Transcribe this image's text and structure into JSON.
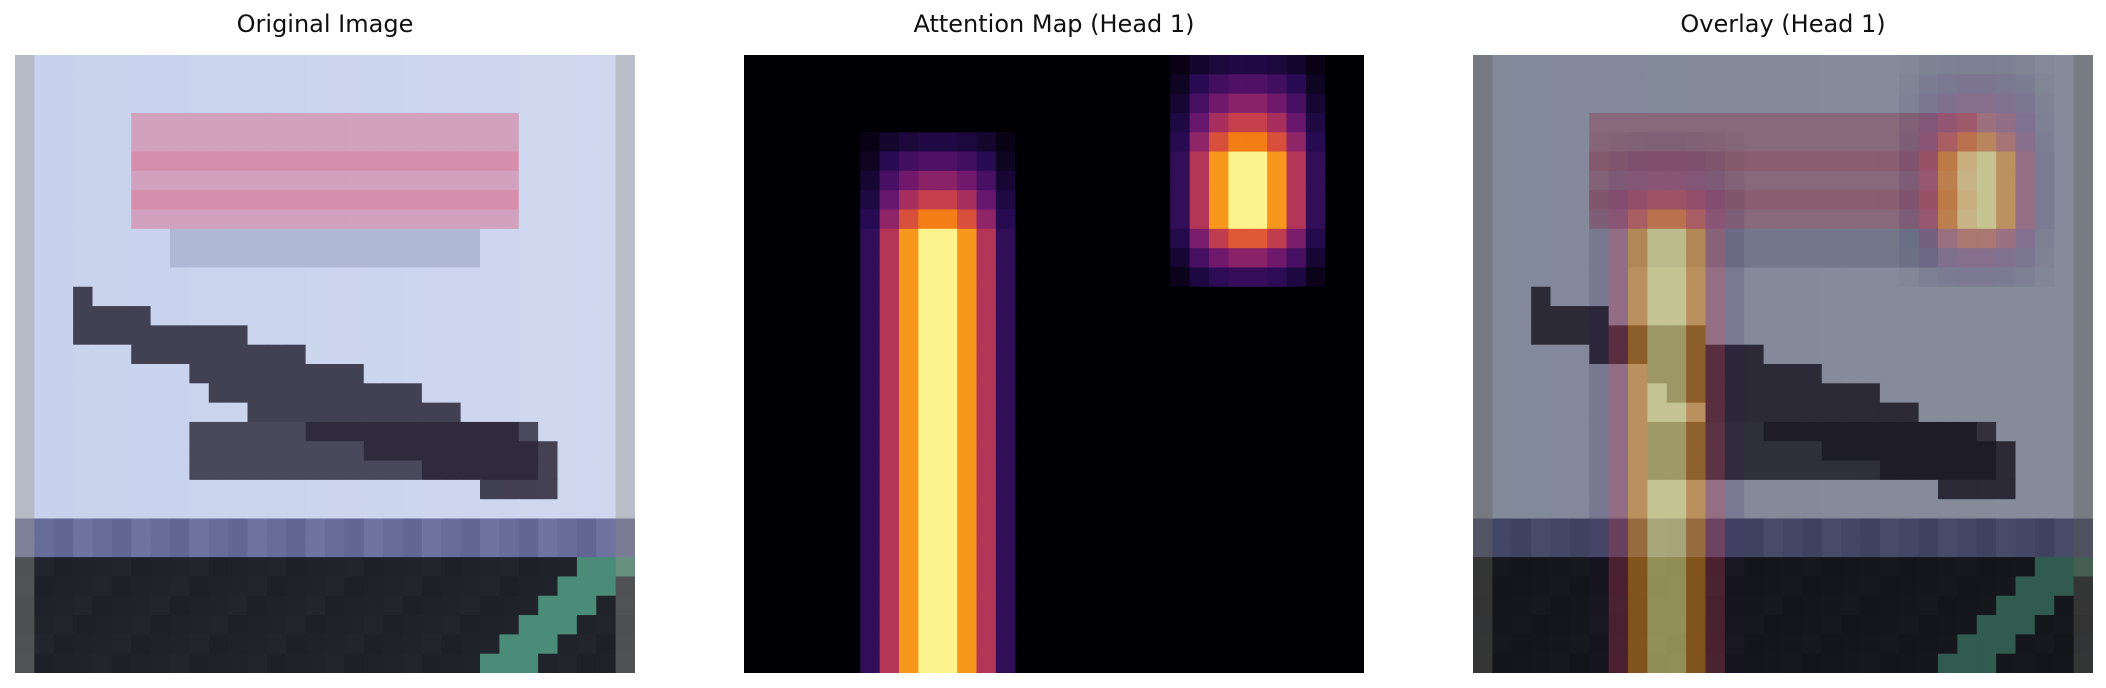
{
  "panels": [
    {
      "title": "Original Image"
    },
    {
      "title": "Attention Map (Head 1)"
    },
    {
      "title": "Overlay (Head 1)"
    }
  ],
  "grid": {
    "rows": 32,
    "cols": 32
  },
  "colors": {
    "sky": "#c8d2ec",
    "banner": "#d97896",
    "plane": "#2a2638",
    "ground": "#1e2028",
    "stripe": "#4a8c78"
  },
  "attention": {
    "colormap": "inferno",
    "blob_columns_left": {
      "col_start": 6,
      "col_end": 14,
      "row_start": 4,
      "row_end": 31
    },
    "blob_columns_right": {
      "col_start": 22,
      "col_end": 30,
      "row_start": 0,
      "row_end": 11
    }
  }
}
